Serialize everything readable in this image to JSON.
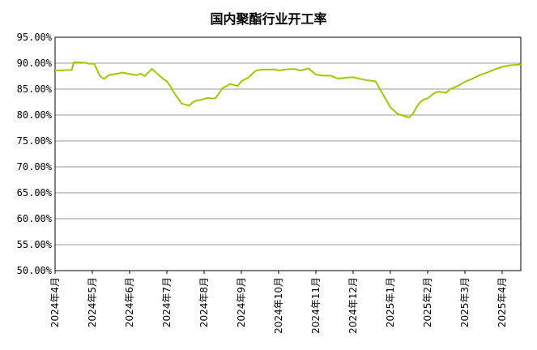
{
  "chart_data": {
    "type": "line",
    "title": "国内聚酯行业开工率",
    "xlabel": "",
    "ylabel": "",
    "ylim": [
      50,
      95
    ],
    "y_ticks": [
      95,
      90,
      85,
      80,
      75,
      70,
      65,
      60,
      55,
      50
    ],
    "y_tick_labels": [
      "95.00%",
      "90.00%",
      "85.00%",
      "80.00%",
      "75.00%",
      "70.00%",
      "65.00%",
      "60.00%",
      "55.00%",
      "50.00%"
    ],
    "x_tick_labels": [
      "2024年4月",
      "2024年5月",
      "2024年6月",
      "2024年7月",
      "2024年8月",
      "2024年9月",
      "2024年10月",
      "2024年11月",
      "2024年12月",
      "2025年1月",
      "2025年2月",
      "2025年3月",
      "2025年4月"
    ],
    "grid": true,
    "legend": "none",
    "line_color": "#99cc00",
    "series": [
      {
        "x": [
          0.0,
          0.45,
          0.5,
          0.8,
          0.9,
          1.0,
          1.05,
          1.2,
          1.3,
          1.32,
          1.4,
          1.5,
          1.7,
          1.8,
          2.0,
          2.2,
          2.3,
          2.4,
          2.6,
          2.8,
          2.9,
          3.0,
          3.1,
          3.2,
          3.3,
          3.4,
          3.5,
          3.6,
          3.7,
          3.8,
          3.9,
          4.0,
          4.1,
          4.2,
          4.3,
          4.5,
          4.7,
          4.9,
          5.0,
          5.05,
          5.2,
          5.3,
          5.4,
          5.5,
          5.7,
          5.9,
          6.0,
          6.2,
          6.4,
          6.6,
          6.8,
          7.0,
          7.2,
          7.4,
          7.6,
          7.8,
          8.0,
          8.3,
          8.6,
          8.8,
          9.0,
          9.2,
          9.3,
          9.5,
          9.6,
          9.7,
          9.8,
          9.9,
          10.0,
          10.1,
          10.2,
          10.3,
          10.4,
          10.5,
          10.6,
          10.8,
          11.0,
          11.2,
          11.4,
          11.6,
          11.8,
          12.0,
          12.2,
          12.4,
          12.6
        ],
        "y": [
          88.6,
          88.7,
          90.2,
          90.1,
          89.9,
          89.9,
          89.9,
          87.6,
          87.0,
          87.0,
          87.5,
          87.8,
          88.0,
          88.2,
          87.9,
          87.7,
          88.0,
          87.5,
          88.9,
          87.6,
          87.0,
          86.5,
          85.5,
          84.2,
          83.2,
          82.2,
          82.0,
          81.8,
          82.5,
          82.8,
          82.9,
          83.1,
          83.3,
          83.2,
          83.2,
          85.2,
          86.0,
          85.6,
          86.5,
          86.7,
          87.3,
          88.0,
          88.6,
          88.7,
          88.8,
          88.8,
          88.6,
          88.8,
          88.9,
          88.6,
          89.0,
          87.8,
          87.6,
          87.6,
          87.0,
          87.2,
          87.3,
          86.8,
          86.5,
          84.0,
          81.5,
          80.2,
          80.0,
          79.5,
          80.2,
          81.5,
          82.5,
          83.0,
          83.2,
          83.8,
          84.3,
          84.5,
          84.4,
          84.3,
          85.0,
          85.6,
          86.4,
          87.0,
          87.7,
          88.2,
          88.8,
          89.3,
          89.6,
          89.7,
          89.8
        ]
      }
    ]
  }
}
